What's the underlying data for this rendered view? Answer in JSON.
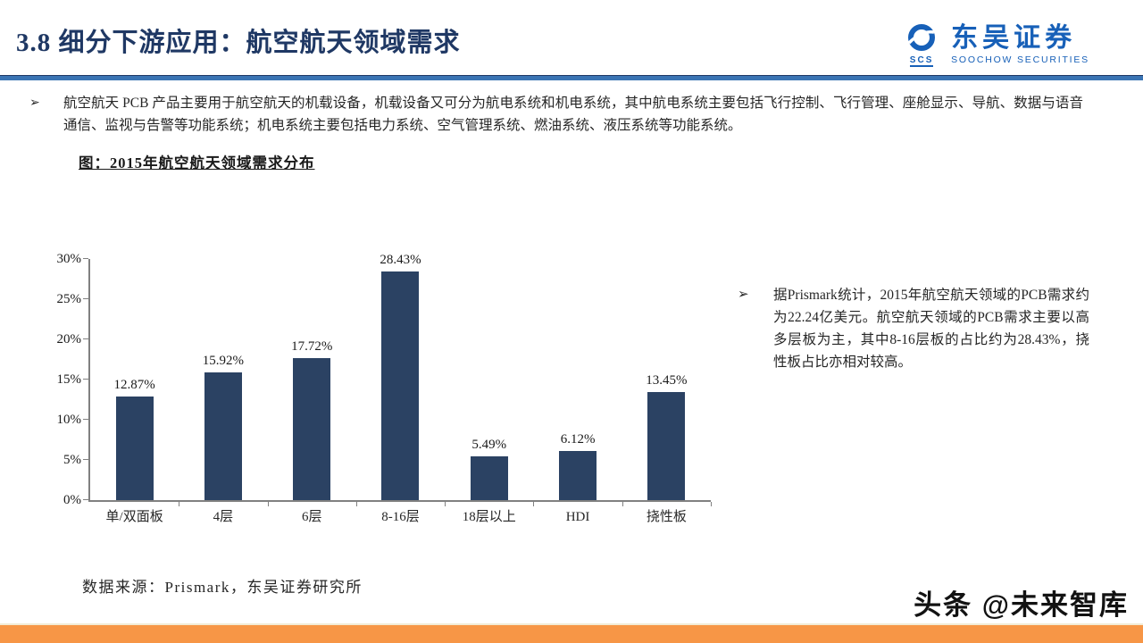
{
  "header": {
    "title": "3.8 细分下游应用：航空航天领域需求",
    "logo": {
      "mark": "SCS",
      "name_cn": "东吴证券",
      "name_en": "SOOCHOW SECURITIES"
    }
  },
  "intro_bullet": {
    "marker": "➢",
    "text": "航空航天 PCB 产品主要用于航空航天的机载设备，机载设备又可分为航电系统和机电系统，其中航电系统主要包括飞行控制、飞行管理、座舱显示、导航、数据与语音通信、监视与告警等功能系统；机电系统主要包括电力系统、空气管理系统、燃油系统、液压系统等功能系统。"
  },
  "chart_data": {
    "type": "bar",
    "title": "图：2015年航空航天领域需求分布",
    "categories": [
      "单/双面板",
      "4层",
      "6层",
      "8-16层",
      "18层以上",
      "HDI",
      "挠性板"
    ],
    "values": [
      12.87,
      15.92,
      17.72,
      28.43,
      5.49,
      6.12,
      13.45
    ],
    "value_labels": [
      "12.87%",
      "15.92%",
      "17.72%",
      "28.43%",
      "5.49%",
      "6.12%",
      "13.45%"
    ],
    "xlabel": "",
    "ylabel": "",
    "ylim": [
      0,
      30
    ],
    "ytick_labels": [
      "0%",
      "5%",
      "10%",
      "15%",
      "20%",
      "25%",
      "30%"
    ],
    "grid": false,
    "legend": null,
    "bar_color": "#2b4263"
  },
  "side_bullet": {
    "marker": "➢",
    "text": "据Prismark统计，2015年航空航天领域的PCB需求约为22.24亿美元。航空航天领域的PCB需求主要以高多层板为主，其中8-16层板的占比约为28.43%，挠性板占比亦相对较高。"
  },
  "source_note": "数据来源：Prismark，东吴证券研究所",
  "watermark": "头条 @未来智库",
  "icons": {
    "logo_icon": "soochow-swirl",
    "bullet_icon": "arrow-right"
  },
  "colors": {
    "title_navy": "#1f3864",
    "divider_blue": "#3a74b4",
    "bar_navy": "#2b4263",
    "logo_blue": "#1760b8",
    "footer_orange": "#f79646",
    "body_text": "#262626"
  }
}
